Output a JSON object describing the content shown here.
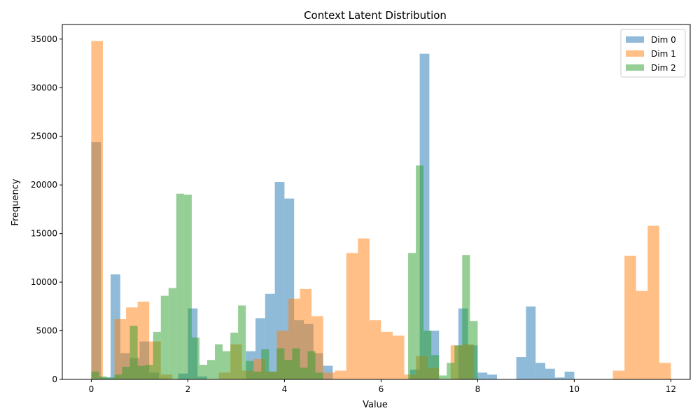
{
  "chart_data": {
    "type": "bar",
    "subtype": "overlapping-histogram",
    "title": "Context Latent Distribution",
    "xlabel": "Value",
    "ylabel": "Frequency",
    "xlim": [
      -0.6,
      12.4
    ],
    "ylim": [
      0,
      36500
    ],
    "xticks": [
      0,
      2,
      4,
      6,
      8,
      10,
      12
    ],
    "yticks": [
      0,
      5000,
      10000,
      15000,
      20000,
      25000,
      30000,
      35000
    ],
    "grid": false,
    "legend_position": "top-right",
    "bar_opacity": 0.5,
    "series": [
      {
        "name": "Dim 0",
        "color": "#1f77b4",
        "bins": [
          [
            0.0,
            0.2,
            24400
          ],
          [
            0.2,
            0.4,
            200
          ],
          [
            0.4,
            0.6,
            10800
          ],
          [
            0.6,
            0.8,
            2700
          ],
          [
            0.8,
            1.0,
            2200
          ],
          [
            1.0,
            1.2,
            3900
          ],
          [
            1.2,
            1.4,
            700
          ],
          [
            1.4,
            1.6,
            100
          ],
          [
            1.8,
            2.0,
            600
          ],
          [
            2.0,
            2.2,
            7300
          ],
          [
            2.2,
            2.4,
            300
          ],
          [
            3.2,
            3.4,
            2900
          ],
          [
            3.4,
            3.6,
            6300
          ],
          [
            3.6,
            3.8,
            8800
          ],
          [
            3.8,
            4.0,
            20300
          ],
          [
            4.0,
            4.2,
            18600
          ],
          [
            4.2,
            4.4,
            6100
          ],
          [
            4.4,
            4.6,
            5700
          ],
          [
            4.6,
            4.8,
            2700
          ],
          [
            4.8,
            5.0,
            1400
          ],
          [
            6.6,
            6.8,
            1000
          ],
          [
            6.8,
            7.0,
            33500
          ],
          [
            7.0,
            7.2,
            5000
          ],
          [
            7.6,
            7.8,
            7300
          ],
          [
            7.8,
            8.0,
            3500
          ],
          [
            8.0,
            8.2,
            700
          ],
          [
            8.2,
            8.4,
            500
          ],
          [
            8.8,
            9.0,
            2300
          ],
          [
            9.0,
            9.2,
            7500
          ],
          [
            9.2,
            9.4,
            1700
          ],
          [
            9.4,
            9.6,
            1100
          ],
          [
            9.6,
            9.8,
            200
          ],
          [
            9.8,
            10.0,
            800
          ]
        ]
      },
      {
        "name": "Dim 1",
        "color": "#ff7f0e",
        "bins": [
          [
            0.0,
            0.24,
            34800
          ],
          [
            0.48,
            0.72,
            6200
          ],
          [
            0.72,
            0.96,
            7400
          ],
          [
            0.96,
            1.2,
            8000
          ],
          [
            1.2,
            1.44,
            3900
          ],
          [
            1.44,
            1.68,
            500
          ],
          [
            2.64,
            2.88,
            700
          ],
          [
            2.88,
            3.12,
            3600
          ],
          [
            3.12,
            3.36,
            900
          ],
          [
            3.36,
            3.6,
            2100
          ],
          [
            3.6,
            3.84,
            800
          ],
          [
            3.84,
            4.08,
            5000
          ],
          [
            4.08,
            4.32,
            8300
          ],
          [
            4.32,
            4.56,
            9300
          ],
          [
            4.56,
            4.8,
            6500
          ],
          [
            4.8,
            5.04,
            700
          ],
          [
            5.04,
            5.28,
            900
          ],
          [
            5.28,
            5.52,
            13000
          ],
          [
            5.52,
            5.76,
            14500
          ],
          [
            5.76,
            6.0,
            6100
          ],
          [
            6.0,
            6.24,
            4900
          ],
          [
            6.24,
            6.48,
            4500
          ],
          [
            6.48,
            6.72,
            500
          ],
          [
            6.72,
            6.96,
            2400
          ],
          [
            6.96,
            7.2,
            1200
          ],
          [
            7.44,
            7.68,
            3500
          ],
          [
            7.68,
            7.92,
            3600
          ],
          [
            10.8,
            11.04,
            900
          ],
          [
            11.04,
            11.28,
            12700
          ],
          [
            11.28,
            11.52,
            9100
          ],
          [
            11.52,
            11.76,
            15800
          ],
          [
            11.76,
            12.0,
            1700
          ]
        ]
      },
      {
        "name": "Dim 2",
        "color": "#2ca02c",
        "bins": [
          [
            0.0,
            0.16,
            800
          ],
          [
            0.16,
            0.32,
            300
          ],
          [
            0.32,
            0.48,
            200
          ],
          [
            0.48,
            0.64,
            500
          ],
          [
            0.64,
            0.8,
            1300
          ],
          [
            0.8,
            0.96,
            5500
          ],
          [
            0.96,
            1.12,
            1400
          ],
          [
            1.12,
            1.28,
            1500
          ],
          [
            1.28,
            1.44,
            4900
          ],
          [
            1.44,
            1.6,
            8600
          ],
          [
            1.6,
            1.76,
            9400
          ],
          [
            1.76,
            1.92,
            19100
          ],
          [
            1.92,
            2.08,
            19000
          ],
          [
            2.08,
            2.24,
            4300
          ],
          [
            2.24,
            2.4,
            1500
          ],
          [
            2.4,
            2.56,
            2000
          ],
          [
            2.56,
            2.72,
            3600
          ],
          [
            2.72,
            2.88,
            2900
          ],
          [
            2.88,
            3.04,
            4800
          ],
          [
            3.04,
            3.2,
            7600
          ],
          [
            3.2,
            3.36,
            1900
          ],
          [
            3.36,
            3.52,
            800
          ],
          [
            3.52,
            3.68,
            3100
          ],
          [
            3.68,
            3.84,
            800
          ],
          [
            3.84,
            4.0,
            3200
          ],
          [
            4.0,
            4.16,
            2000
          ],
          [
            4.16,
            4.32,
            3200
          ],
          [
            4.32,
            4.48,
            1200
          ],
          [
            4.48,
            4.64,
            2900
          ],
          [
            4.64,
            4.8,
            700
          ],
          [
            6.56,
            6.72,
            13000
          ],
          [
            6.72,
            6.88,
            22000
          ],
          [
            6.88,
            7.04,
            5000
          ],
          [
            7.04,
            7.2,
            2500
          ],
          [
            7.2,
            7.36,
            400
          ],
          [
            7.36,
            7.52,
            1700
          ],
          [
            7.52,
            7.68,
            3500
          ],
          [
            7.68,
            7.84,
            12800
          ],
          [
            7.84,
            8.0,
            6000
          ]
        ]
      }
    ]
  }
}
